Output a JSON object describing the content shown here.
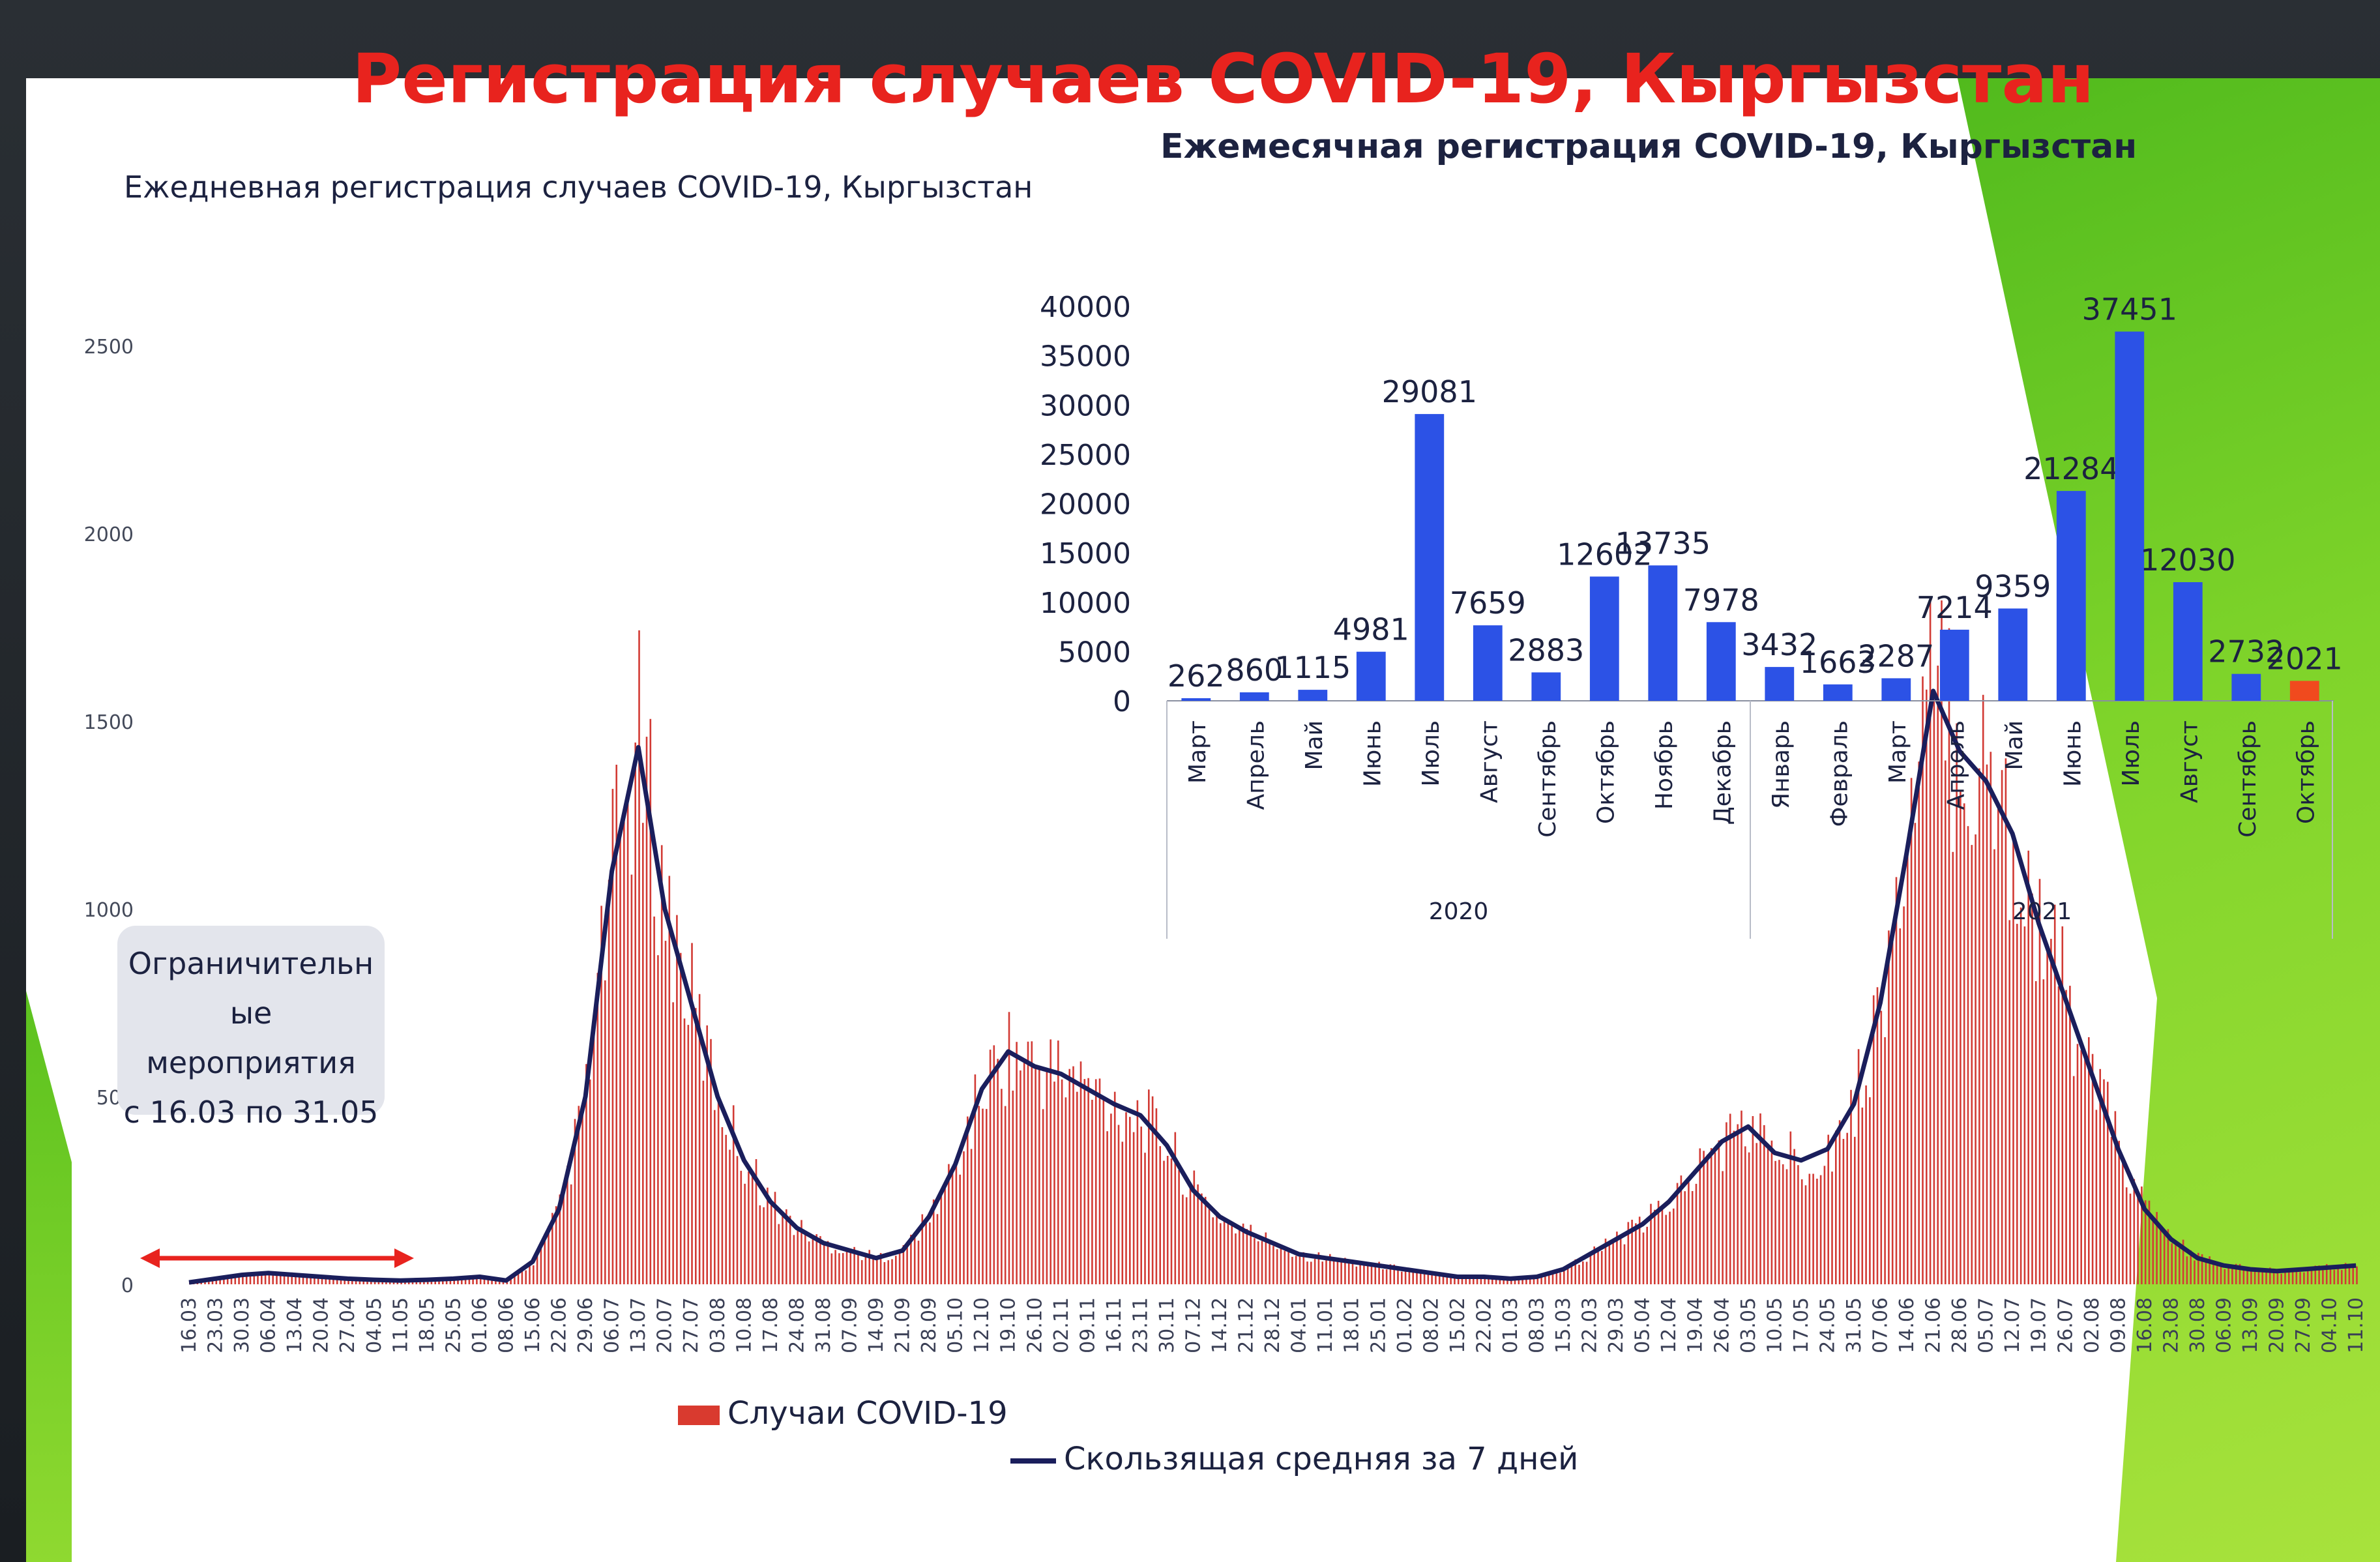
{
  "slide": {
    "title": "Регистрация случаев COVID-19, Кыргызстан",
    "daily_title": "Ежедневная регистрация случаев COVID-19, Кыргызстан",
    "monthly_title": "Ежемесячная регистрация COVID-19, Кыргызстан",
    "callout": "Ограничительн\nые\nмероприятия\nс 16.03 по 31.05",
    "legend_bars": "Случаи COVID-19",
    "legend_line": "Скользящая средняя за 7 дней",
    "colors": {
      "title": "#e8231e",
      "daily_bars": "#d23a34",
      "moving_average": "#1a1e5c",
      "monthly_bars": "#2c52e6",
      "monthly_highlight": "#f04a1e",
      "callout_arrow": "#e8231e",
      "green_accent": "#6cc822"
    }
  },
  "chart_data": [
    {
      "type": "bar",
      "title": "Ежедневная регистрация случаев COVID-19, Кыргызстан",
      "y_ticks": [
        "0",
        "500",
        "1000",
        "1500",
        "2000",
        "2500"
      ],
      "ylim": [
        0,
        2500
      ],
      "x_tick_labels": [
        "16.03",
        "23.03",
        "30.03",
        "06.04",
        "13.04",
        "20.04",
        "27.04",
        "04.05",
        "11.05",
        "18.05",
        "25.05",
        "01.06",
        "08.06",
        "15.06",
        "22.06",
        "29.06",
        "06.07",
        "13.07",
        "20.07",
        "27.07",
        "03.08",
        "10.08",
        "17.08",
        "24.08",
        "31.08",
        "07.09",
        "14.09",
        "21.09",
        "28.09",
        "05.10",
        "12.10",
        "19.10",
        "26.10",
        "02.11",
        "09.11",
        "16.11",
        "23.11",
        "30.11",
        "07.12",
        "14.12",
        "21.12",
        "28.12",
        "04.01",
        "11.01",
        "18.01",
        "25.01",
        "01.02",
        "08.02",
        "15.02",
        "22.02",
        "01.03",
        "08.03",
        "15.03",
        "22.03",
        "29.03",
        "05.04",
        "12.04",
        "19.04",
        "26.04",
        "03.05",
        "10.05",
        "17.05",
        "24.05",
        "31.05",
        "07.06",
        "14.06",
        "21.06",
        "28.06",
        "05.07",
        "12.07",
        "19.07",
        "26.07",
        "02.08",
        "09.08",
        "16.08",
        "23.08",
        "30.08",
        "06.09",
        "13.09",
        "20.09",
        "27.09",
        "04.10",
        "11.10"
      ],
      "weekly_daily_cases": [
        5,
        15,
        25,
        30,
        25,
        20,
        15,
        12,
        10,
        12,
        15,
        20,
        10,
        60,
        200,
        500,
        1100,
        1430,
        1000,
        750,
        500,
        330,
        220,
        150,
        110,
        90,
        70,
        90,
        180,
        320,
        520,
        620,
        580,
        560,
        520,
        480,
        450,
        370,
        250,
        180,
        140,
        110,
        80,
        70,
        60,
        50,
        40,
        30,
        20,
        20,
        15,
        20,
        40,
        80,
        120,
        160,
        220,
        300,
        380,
        420,
        350,
        330,
        360,
        480,
        750,
        1150,
        1580,
        1420,
        1340,
        1200,
        960,
        760,
        560,
        360,
        200,
        120,
        70,
        50,
        40,
        35,
        40,
        45,
        50
      ],
      "series": [
        {
          "name": "Случаи COVID-19"
        },
        {
          "name": "Скользящая средняя за 7 дней"
        }
      ],
      "annotations": [
        "Ограничительн ые мероприятия с 16.03 по 31.05"
      ]
    },
    {
      "type": "bar",
      "title": "Ежемесячная регистрация COVID-19, Кыргызстан",
      "categories": [
        "Март",
        "Апрель",
        "Май",
        "Июнь",
        "Июль",
        "Август",
        "Сентябрь",
        "Октябрь",
        "Ноябрь",
        "Декабрь",
        "Январь",
        "Февраль",
        "Март",
        "Апрель",
        "Май",
        "Июнь",
        "Июль",
        "Август",
        "Сентябрь",
        "Октябрь"
      ],
      "values": [
        262,
        860,
        1115,
        4981,
        29081,
        7659,
        2883,
        12602,
        13735,
        7978,
        3432,
        1663,
        2287,
        7214,
        9359,
        21284,
        37451,
        12030,
        2732,
        2021
      ],
      "value_labels": [
        "262",
        "860",
        "1115",
        "4981",
        "29081",
        "7659",
        "2883",
        "12602",
        "13735",
        "7978",
        "3432",
        "1663",
        "2287",
        "7214",
        "9359",
        "21284",
        "37451",
        "12030",
        "2732",
        "2021"
      ],
      "year_groups": [
        {
          "label": "2020",
          "span": 10
        },
        {
          "label": "2021",
          "span": 10
        }
      ],
      "y_ticks": [
        "0",
        "5000",
        "10000",
        "15000",
        "20000",
        "25000",
        "30000",
        "35000",
        "40000"
      ],
      "ylim": [
        0,
        40000
      ]
    }
  ]
}
